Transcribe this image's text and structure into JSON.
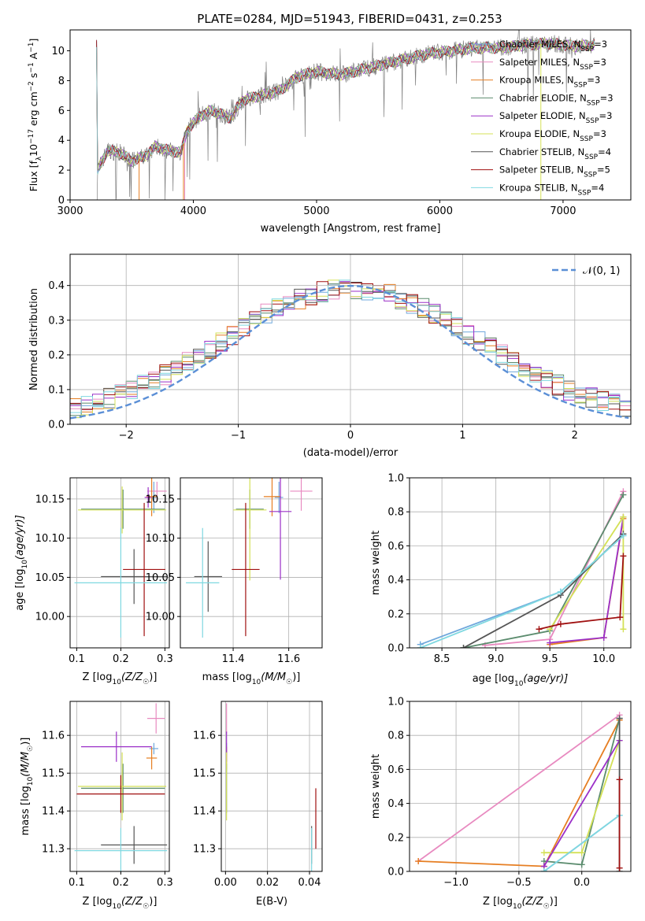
{
  "figure": {
    "title": "PLATE=0284, MJD=51943, FIBERID=0431, z=0.253"
  },
  "colors": {
    "chabrier_miles": "#6fa8dc",
    "salpeter_miles": "#e88ac0",
    "kroupa_miles": "#e67e22",
    "chabrier_elodie": "#5b8c6e",
    "salpeter_elodie": "#9b30c8",
    "kroupa_elodie": "#d4e157",
    "chabrier_stelib": "#555555",
    "salpeter_stelib": "#a01010",
    "kroupa_stelib": "#7fd8e0",
    "data_spectrum": "#808080",
    "normal_curve": "#5b8fd6",
    "grid": "#b0b0b0"
  },
  "chart_data": [
    {
      "id": "spectrum",
      "type": "line",
      "xlabel": "wavelength [Angstrom, rest frame]",
      "ylabel": "Flux [f",
      "ylabel_sub": "λ",
      "ylabel_mid": "10",
      "ylabel_exp": "−17",
      "ylabel_units": " erg cm",
      "ylabel_exp2": "−2",
      "ylabel_s": " s",
      "ylabel_exp3": "−1",
      "ylabel_end": " A",
      "ylabel_exp4": "−1",
      "ylabel_close": "]",
      "xlim": [
        3000,
        7550
      ],
      "ylim": [
        0,
        11.4
      ],
      "xticks": [
        "3000",
        "4000",
        "5000",
        "6000",
        "7000"
      ],
      "yticks": [
        "0",
        "2",
        "4",
        "6",
        "8",
        "10"
      ],
      "spectrum_control_points": [
        [
          3220,
          1.9
        ],
        [
          3300,
          3.3
        ],
        [
          3400,
          3.2
        ],
        [
          3500,
          2.6
        ],
        [
          3600,
          2.9
        ],
        [
          3700,
          3.6
        ],
        [
          3800,
          3.3
        ],
        [
          3900,
          3.2
        ],
        [
          3950,
          4.7
        ],
        [
          4050,
          5.6
        ],
        [
          4150,
          6.0
        ],
        [
          4300,
          5.5
        ],
        [
          4400,
          6.7
        ],
        [
          4550,
          7.0
        ],
        [
          4700,
          7.3
        ],
        [
          4850,
          8.3
        ],
        [
          5000,
          8.6
        ],
        [
          5200,
          8.4
        ],
        [
          5300,
          8.6
        ],
        [
          5500,
          9.0
        ],
        [
          5700,
          9.4
        ],
        [
          5900,
          9.8
        ],
        [
          6100,
          10.0
        ],
        [
          6300,
          10.2
        ],
        [
          6500,
          10.2
        ],
        [
          6700,
          10.4
        ],
        [
          6900,
          10.5
        ],
        [
          7100,
          10.3
        ],
        [
          7250,
          10.4
        ]
      ],
      "legend": [
        {
          "label": "Chabrier MILES, N",
          "sub": "SSP",
          "suffix": "=3",
          "color": "#6fa8dc"
        },
        {
          "label": "Salpeter MILES, N",
          "sub": "SSP",
          "suffix": "=3",
          "color": "#e88ac0"
        },
        {
          "label": "Kroupa MILES, N",
          "sub": "SSP",
          "suffix": "=3",
          "color": "#e67e22"
        },
        {
          "label": "Chabrier ELODIE, N",
          "sub": "SSP",
          "suffix": "=3",
          "color": "#5b8c6e"
        },
        {
          "label": "Salpeter ELODIE, N",
          "sub": "SSP",
          "suffix": "=3",
          "color": "#9b30c8"
        },
        {
          "label": "Kroupa ELODIE, N",
          "sub": "SSP",
          "suffix": "=3",
          "color": "#d4e157"
        },
        {
          "label": "Chabrier STELIB, N",
          "sub": "SSP",
          "suffix": "=4",
          "color": "#555555"
        },
        {
          "label": "Salpeter STELIB, N",
          "sub": "SSP",
          "suffix": "=5",
          "color": "#a01010"
        },
        {
          "label": "Kroupa STELIB, N",
          "sub": "SSP",
          "suffix": "=4",
          "color": "#7fd8e0"
        }
      ],
      "legend_position": "upper-right"
    },
    {
      "id": "residuals",
      "type": "histogram",
      "xlabel": "(data-model)/error",
      "ylabel": "Normed distribution",
      "xlim": [
        -2.5,
        2.5
      ],
      "ylim": [
        0,
        0.49
      ],
      "xticks": [
        "−2",
        "−1",
        "0",
        "1",
        "2"
      ],
      "yticks": [
        "0.0",
        "0.1",
        "0.2",
        "0.3",
        "0.4"
      ],
      "bin_width": 0.1,
      "normal_label": "𝒩(0, 1)",
      "legend_position": "upper-right",
      "grid": true
    },
    {
      "id": "age_vs_Z",
      "type": "errorbar",
      "xlabel": "Z [log",
      "xlabel_sub": "10",
      "xlabel_end": "(Z/Z",
      "xlabel_sun": "☉",
      "xlabel_close": ")]",
      "ylabel": "age  [log",
      "ylabel_sub": "10",
      "ylabel_end": "(age/yr)]",
      "xlim": [
        0.085,
        0.31
      ],
      "ylim": [
        9.96,
        10.177
      ],
      "xticks": [
        "0.1",
        "0.2",
        "0.3"
      ],
      "yticks": [
        "10.00",
        "10.05",
        "10.10",
        "10.15"
      ],
      "points": [
        {
          "model": "chabrier_miles",
          "x": 0.275,
          "xerr": 0.008,
          "y": 10.152,
          "yerr": 0.02
        },
        {
          "model": "salpeter_miles",
          "x": 0.282,
          "xerr": 0.022,
          "y": 10.16,
          "yerr": 0.012
        },
        {
          "model": "kroupa_miles",
          "x": 0.27,
          "xerr": 0.012,
          "y": 10.153,
          "yerr": 0.025
        },
        {
          "model": "chabrier_elodie",
          "x": 0.205,
          "xerr": 0.095,
          "y": 10.137,
          "yerr": 0.025
        },
        {
          "model": "salpeter_elodie",
          "x": 0.262,
          "xerr": 0.008,
          "y": 10.152,
          "yerr": 0.013
        },
        {
          "model": "kroupa_elodie",
          "x": 0.203,
          "xerr": 0.1,
          "y": 10.136,
          "yerr": 0.03
        },
        {
          "model": "chabrier_stelib",
          "x": 0.23,
          "xerr": 0.075,
          "y": 10.051,
          "yerr": 0.035
        },
        {
          "model": "salpeter_stelib",
          "x": 0.253,
          "xerr": 0.048,
          "y": 10.06,
          "yerr": 0.085
        },
        {
          "model": "kroupa_stelib",
          "x": 0.2,
          "xerr": 0.105,
          "y": 10.043,
          "yerr": 0.07
        }
      ]
    },
    {
      "id": "age_vs_mass",
      "type": "errorbar",
      "xlabel": "mass [log",
      "xlabel_sub": "10",
      "xlabel_end": "(M/M",
      "xlabel_sun": "☉",
      "xlabel_close": ")]",
      "xlim": [
        11.21,
        11.72
      ],
      "ylim": [
        9.96,
        10.177
      ],
      "xticks": [
        "11.4",
        "11.6"
      ],
      "yticks": [
        "10.00",
        "10.05",
        "10.10",
        "10.15"
      ],
      "points": [
        {
          "model": "chabrier_miles",
          "x": 11.565,
          "xerr": 0.015,
          "y": 10.152,
          "yerr": 0.02
        },
        {
          "model": "salpeter_miles",
          "x": 11.645,
          "xerr": 0.04,
          "y": 10.16,
          "yerr": 0.025
        },
        {
          "model": "kroupa_miles",
          "x": 11.54,
          "xerr": 0.03,
          "y": 10.153,
          "yerr": 0.025
        },
        {
          "model": "chabrier_elodie",
          "x": 11.46,
          "xerr": 0.05,
          "y": 10.137,
          "yerr": 0.025
        },
        {
          "model": "salpeter_elodie",
          "x": 11.57,
          "xerr": 0.04,
          "y": 10.134,
          "yerr": 0.087
        },
        {
          "model": "kroupa_elodie",
          "x": 11.46,
          "xerr": 0.06,
          "y": 10.136,
          "yerr": 0.09
        },
        {
          "model": "chabrier_stelib",
          "x": 11.31,
          "xerr": 0.05,
          "y": 10.051,
          "yerr": 0.045
        },
        {
          "model": "salpeter_stelib",
          "x": 11.445,
          "xerr": 0.05,
          "y": 10.06,
          "yerr": 0.085
        },
        {
          "model": "kroupa_stelib",
          "x": 11.29,
          "xerr": 0.06,
          "y": 10.043,
          "yerr": 0.07
        }
      ]
    },
    {
      "id": "mass_weight_vs_age",
      "type": "line",
      "xlabel": "age  [log",
      "xlabel_sub": "10",
      "xlabel_end": "(age/yr)]",
      "ylabel": "mass weight",
      "xlim": [
        8.2,
        10.25
      ],
      "ylim": [
        0,
        1.0
      ],
      "xticks": [
        "8.5",
        "9.0",
        "9.5",
        "10.0"
      ],
      "yticks": [
        "0.0",
        "0.2",
        "0.4",
        "0.6",
        "0.8",
        "1.0"
      ],
      "series": [
        {
          "model": "chabrier_miles",
          "x": [
            8.3,
            9.6,
            10.18
          ],
          "y": [
            0.02,
            0.33,
            0.66
          ]
        },
        {
          "model": "salpeter_miles",
          "x": [
            8.9,
            9.5,
            10.18
          ],
          "y": [
            0.015,
            0.05,
            0.92
          ]
        },
        {
          "model": "kroupa_miles",
          "x": [
            9.5,
            10.0,
            10.18
          ],
          "y": [
            0.02,
            0.06,
            0.76
          ]
        },
        {
          "model": "chabrier_elodie",
          "x": [
            8.7,
            9.5,
            10.18
          ],
          "y": [
            0.0,
            0.1,
            0.9
          ]
        },
        {
          "model": "salpeter_elodie",
          "x": [
            9.5,
            10.0,
            10.18
          ],
          "y": [
            0.03,
            0.06,
            0.77
          ]
        },
        {
          "model": "kroupa_elodie",
          "x": [
            9.5,
            10.18,
            10.18
          ],
          "y": [
            0.11,
            0.77,
            0.11
          ]
        },
        {
          "model": "chabrier_stelib",
          "x": [
            8.7,
            9.6,
            10.18
          ],
          "y": [
            0.0,
            0.31,
            0.67
          ]
        },
        {
          "model": "salpeter_stelib",
          "x": [
            9.4,
            9.6,
            10.15,
            10.18
          ],
          "y": [
            0.11,
            0.14,
            0.18,
            0.54
          ]
        },
        {
          "model": "kroupa_stelib",
          "x": [
            8.3,
            9.6,
            10.18
          ],
          "y": [
            0.0,
            0.33,
            0.66
          ]
        }
      ]
    },
    {
      "id": "mass_vs_Z",
      "type": "errorbar",
      "xlabel": "Z [log",
      "xlabel_sub": "10",
      "xlabel_end": "(Z/Z",
      "xlabel_sun": "☉",
      "xlabel_close": ")]",
      "ylabel": "mass [log",
      "ylabel_sub": "10",
      "ylabel_end": "(M/M",
      "ylabel_sun": "☉",
      "ylabel_close": ")]",
      "xlim": [
        0.085,
        0.31
      ],
      "ylim": [
        11.24,
        11.69
      ],
      "xticks": [
        "0.1",
        "0.2",
        "0.3"
      ],
      "yticks": [
        "11.3",
        "11.4",
        "11.5",
        "11.6"
      ],
      "points": [
        {
          "model": "chabrier_miles",
          "x": 0.275,
          "xerr": 0.01,
          "y": 11.565,
          "yerr": 0.015
        },
        {
          "model": "salpeter_miles",
          "x": 0.28,
          "xerr": 0.02,
          "y": 11.645,
          "yerr": 0.04
        },
        {
          "model": "kroupa_miles",
          "x": 0.27,
          "xerr": 0.012,
          "y": 11.54,
          "yerr": 0.03
        },
        {
          "model": "chabrier_elodie",
          "x": 0.205,
          "xerr": 0.095,
          "y": 11.46,
          "yerr": 0.065
        },
        {
          "model": "salpeter_elodie",
          "x": 0.19,
          "xerr": 0.08,
          "y": 11.57,
          "yerr": 0.04
        },
        {
          "model": "kroupa_elodie",
          "x": 0.203,
          "xerr": 0.1,
          "y": 11.465,
          "yerr": 0.09
        },
        {
          "model": "chabrier_stelib",
          "x": 0.23,
          "xerr": 0.075,
          "y": 11.31,
          "yerr": 0.05
        },
        {
          "model": "salpeter_stelib",
          "x": 0.2,
          "xerr": 0.1,
          "y": 11.445,
          "yerr": 0.05
        },
        {
          "model": "kroupa_stelib",
          "x": 0.2,
          "xerr": 0.105,
          "y": 11.295,
          "yerr": 0.06
        }
      ]
    },
    {
      "id": "mass_vs_ebv",
      "type": "errorbar",
      "xlabel": "E(B-V)",
      "xlim": [
        -0.002,
        0.046
      ],
      "ylim": [
        11.24,
        11.69
      ],
      "xticks": [
        "0.00",
        "0.02",
        "0.04"
      ],
      "yticks": [
        "11.3",
        "11.4",
        "11.5",
        "11.6"
      ],
      "points": [
        {
          "model": "chabrier_miles",
          "x": 0.0005,
          "xerr": 0,
          "y": 11.565,
          "yerr": 0.015
        },
        {
          "model": "salpeter_miles",
          "x": 0.0005,
          "xerr": 0,
          "y": 11.645,
          "yerr": 0.04
        },
        {
          "model": "kroupa_miles",
          "x": 0.0005,
          "xerr": 0,
          "y": 11.54,
          "yerr": 0.03
        },
        {
          "model": "chabrier_elodie",
          "x": 0.0005,
          "xerr": 0,
          "y": 11.46,
          "yerr": 0.065
        },
        {
          "model": "salpeter_elodie",
          "x": 0.0005,
          "xerr": 0,
          "y": 11.57,
          "yerr": 0.04
        },
        {
          "model": "kroupa_elodie",
          "x": 0.0005,
          "xerr": 0,
          "y": 11.465,
          "yerr": 0.09
        },
        {
          "model": "chabrier_stelib",
          "x": 0.041,
          "xerr": 0,
          "y": 11.31,
          "yerr": 0.05
        },
        {
          "model": "salpeter_stelib",
          "x": 0.043,
          "xerr": 0,
          "y": 11.38,
          "yerr": 0.08
        },
        {
          "model": "kroupa_stelib",
          "x": 0.041,
          "xerr": 0,
          "y": 11.295,
          "yerr": 0.06
        }
      ]
    },
    {
      "id": "mass_weight_vs_Z",
      "type": "line",
      "xlabel": "Z [log",
      "xlabel_sub": "10",
      "xlabel_end": "(Z/Z",
      "xlabel_sun": "☉",
      "xlabel_close": ")]",
      "ylabel": "mass weight",
      "xlim": [
        -1.37,
        0.39
      ],
      "ylim": [
        0,
        1.0
      ],
      "xticks": [
        "−1.0",
        "−0.5",
        "0.0"
      ],
      "yticks": [
        "0.0",
        "0.2",
        "0.4",
        "0.6",
        "0.8",
        "1.0"
      ],
      "series": [
        {
          "model": "salpeter_miles",
          "x": [
            -1.3,
            0.3
          ],
          "y": [
            0.06,
            0.92
          ]
        },
        {
          "model": "kroupa_miles",
          "x": [
            -1.3,
            -0.3,
            0.3
          ],
          "y": [
            0.06,
            0.03,
            0.89
          ]
        },
        {
          "model": "chabrier_elodie",
          "x": [
            -0.3,
            0.0,
            0.3
          ],
          "y": [
            0.06,
            0.04,
            0.9
          ]
        },
        {
          "model": "kroupa_elodie",
          "x": [
            -0.3,
            0.0,
            0.3
          ],
          "y": [
            0.11,
            0.11,
            0.77
          ]
        },
        {
          "model": "salpeter_elodie",
          "x": [
            -0.3,
            0.3
          ],
          "y": [
            0.03,
            0.77
          ]
        },
        {
          "model": "chabrier_miles",
          "x": [
            -0.3,
            0.3
          ],
          "y": [
            0.0,
            0.33
          ]
        },
        {
          "model": "kroupa_stelib",
          "x": [
            -0.3,
            0.3
          ],
          "y": [
            0.0,
            0.33
          ]
        },
        {
          "model": "chabrier_stelib",
          "x": [
            0.3,
            0.3
          ],
          "y": [
            0.0,
            0.9
          ]
        },
        {
          "model": "salpeter_stelib",
          "x": [
            0.3,
            0.3
          ],
          "y": [
            0.02,
            0.54
          ]
        }
      ]
    }
  ]
}
